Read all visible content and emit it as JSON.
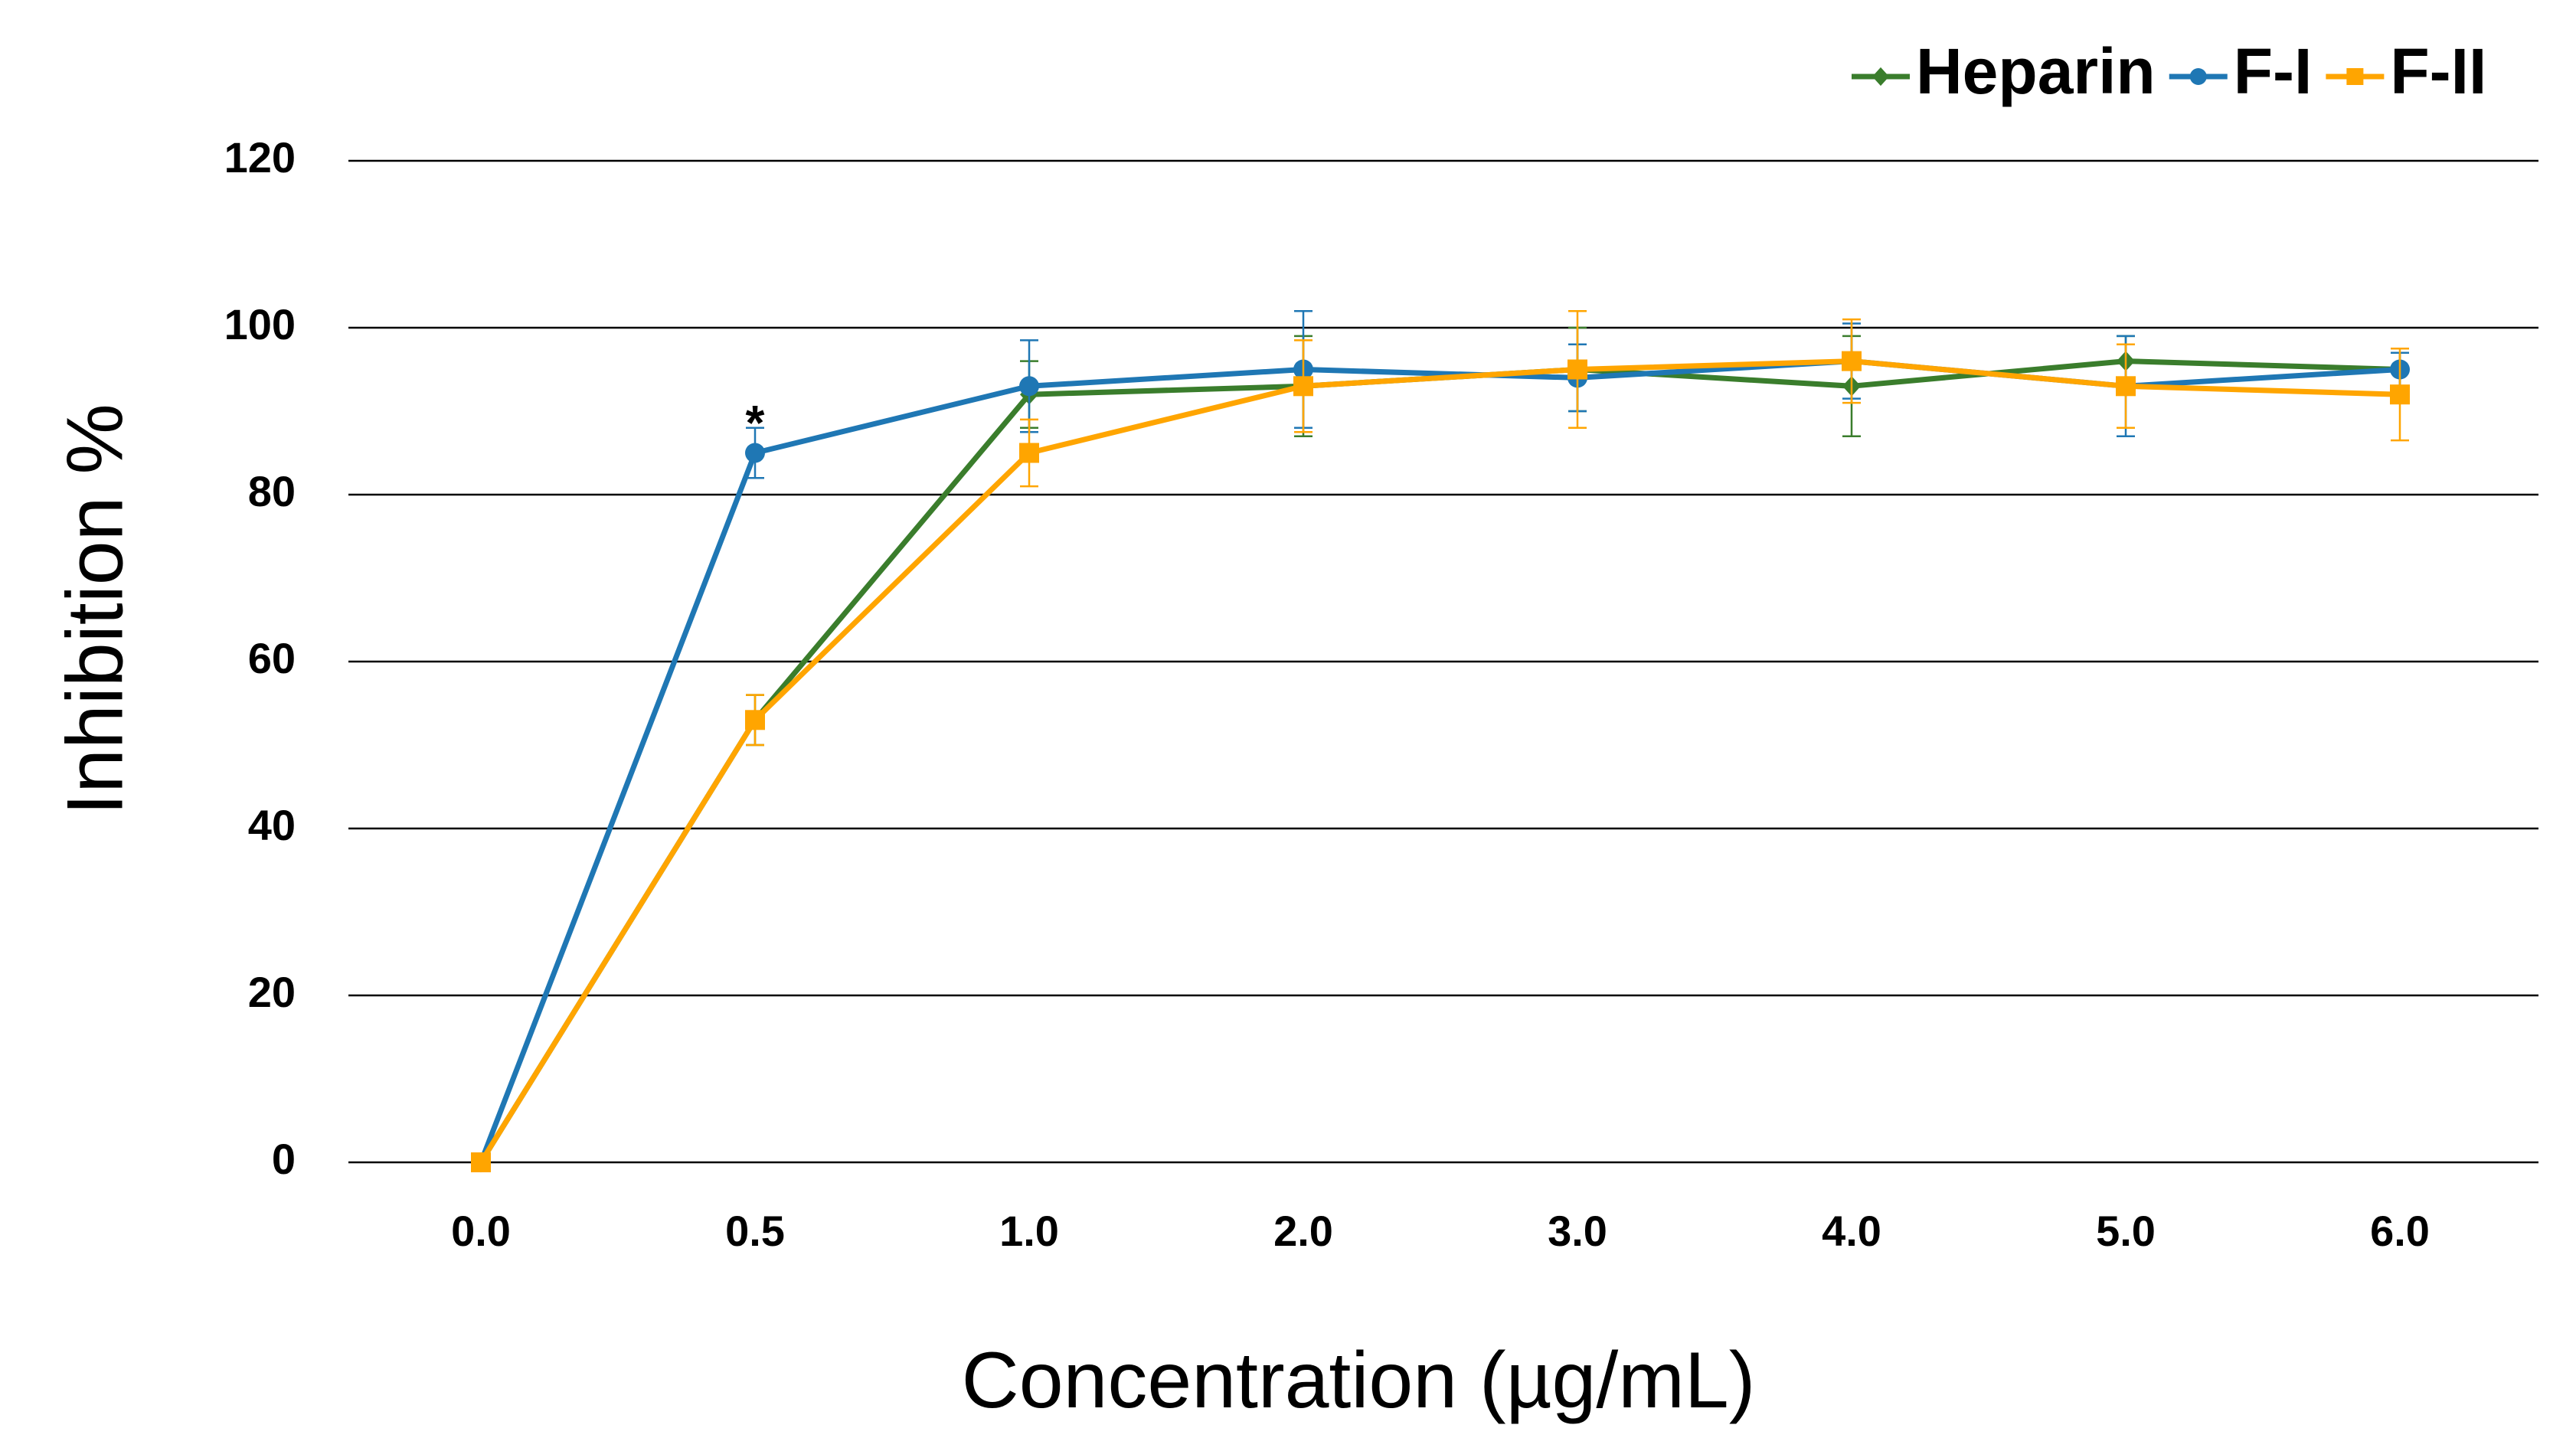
{
  "chart_data": {
    "type": "line",
    "title": "",
    "xlabel": "Concentration (µg/mL)",
    "ylabel": "Inhibition %",
    "categories": [
      "0.0",
      "0.5",
      "1.0",
      "2.0",
      "3.0",
      "4.0",
      "5.0",
      "6.0"
    ],
    "ylim": [
      0,
      120
    ],
    "yticks": [
      "0",
      "20",
      "40",
      "60",
      "80",
      "100",
      "120"
    ],
    "ytick_values": [
      0,
      20,
      40,
      60,
      80,
      100,
      120
    ],
    "grid": "horizontal",
    "legend_position": "top-right",
    "series": [
      {
        "name": "Heparin",
        "color": "#3a7d2c",
        "marker": "diamond",
        "values": [
          0,
          53,
          92,
          93,
          95,
          93,
          96,
          95
        ],
        "errors": [
          0,
          3,
          4,
          6,
          5,
          6,
          3,
          2
        ]
      },
      {
        "name": "F-I",
        "color": "#1f77b4",
        "marker": "circle",
        "values": [
          0,
          85,
          93,
          95,
          94,
          96,
          93,
          95
        ],
        "errors": [
          0,
          3,
          5.5,
          7,
          4,
          4.5,
          6,
          2
        ]
      },
      {
        "name": "F-II",
        "color": "#ffa500",
        "marker": "square",
        "values": [
          0,
          53,
          85,
          93,
          95,
          96,
          93,
          92
        ],
        "errors": [
          0,
          3,
          4,
          5.5,
          7,
          5,
          5,
          5.5
        ]
      }
    ],
    "annotations": [
      {
        "text": "*",
        "category": "0.5",
        "value": 89,
        "series": "F-I"
      }
    ]
  }
}
